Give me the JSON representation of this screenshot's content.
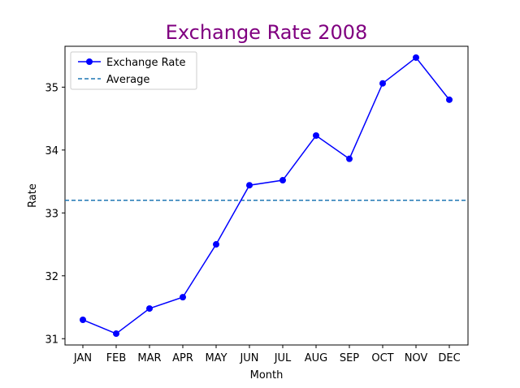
{
  "chart_data": {
    "type": "line",
    "title": "Exchange Rate 2008",
    "xlabel": "Month",
    "ylabel": "Rate",
    "categories": [
      "JAN",
      "FEB",
      "MAR",
      "APR",
      "MAY",
      "JUN",
      "JUL",
      "AUG",
      "SEP",
      "OCT",
      "NOV",
      "DEC"
    ],
    "series": [
      {
        "name": "Exchange Rate",
        "values": [
          31.3,
          31.08,
          31.48,
          31.66,
          32.5,
          33.44,
          33.52,
          34.23,
          33.86,
          35.06,
          35.47,
          34.8
        ]
      }
    ],
    "average": {
      "name": "Average",
      "value": 33.2
    },
    "ylim": [
      30.9,
      35.65
    ],
    "yticks": [
      31,
      32,
      33,
      34,
      35
    ],
    "grid": false,
    "legend": "top-left",
    "colors": {
      "title": "#800080",
      "line": "#0000ff",
      "average": "#1f77b4"
    }
  }
}
